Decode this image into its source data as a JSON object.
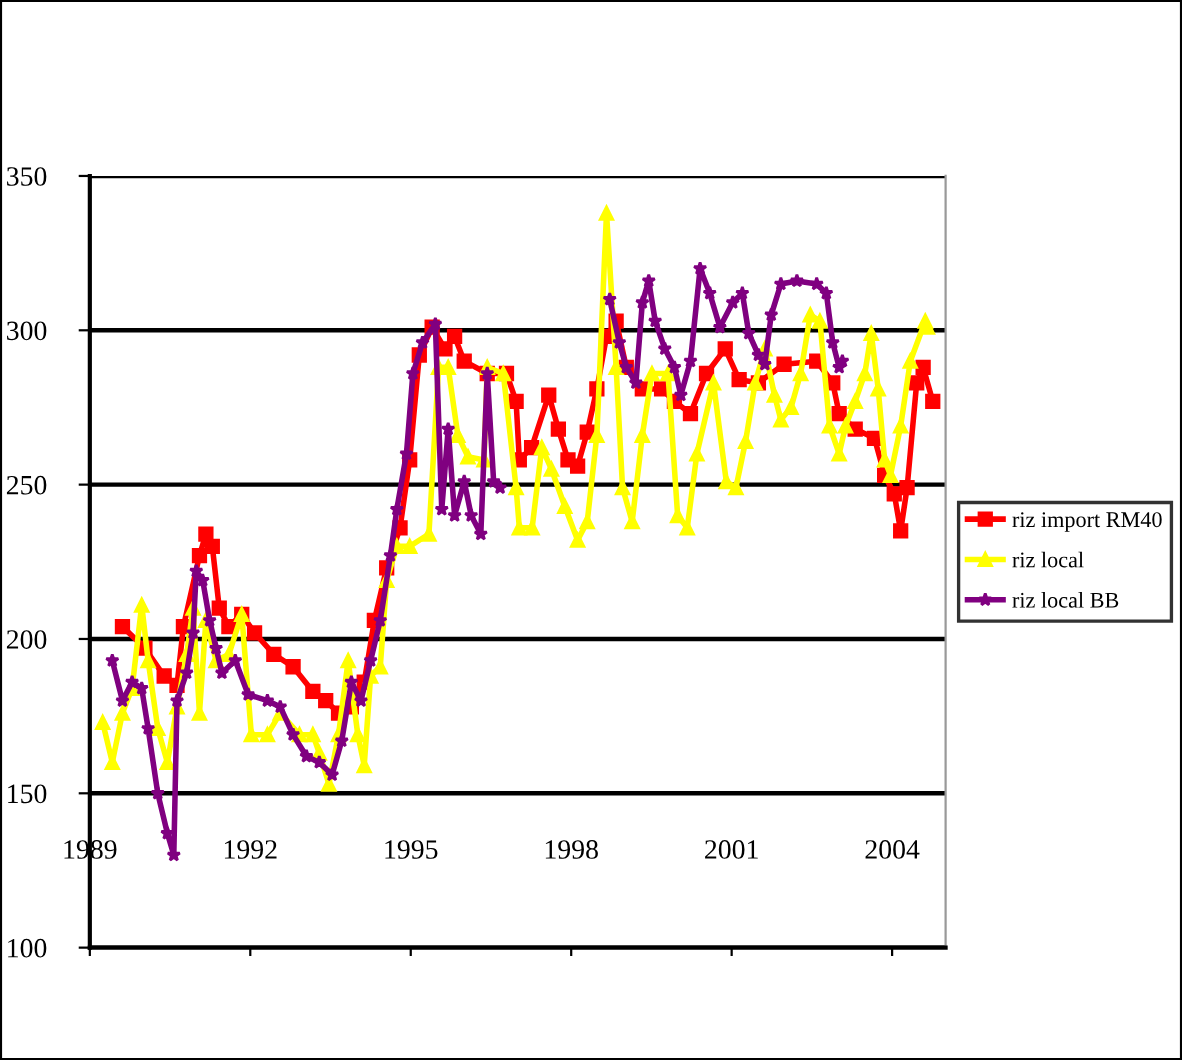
{
  "chart_data": {
    "type": "line",
    "xlim": [
      1989,
      2005
    ],
    "xticks": [
      1989,
      1992,
      1995,
      1998,
      2001,
      2004
    ],
    "ylim": [
      100,
      350
    ],
    "yticks": [
      100,
      150,
      200,
      250,
      300,
      350
    ],
    "grid": "y",
    "legend": "right",
    "series": [
      {
        "name": "riz import RM40",
        "color": "#ff0000",
        "marker": "square",
        "x": [
          1989.61,
          1990.03,
          1990.39,
          1990.63,
          1990.75,
          1991.05,
          1991.17,
          1991.29,
          1991.42,
          1991.6,
          1991.84,
          1992.08,
          1992.44,
          1992.8,
          1993.17,
          1993.41,
          1993.65,
          1993.89,
          1994.13,
          1994.32,
          1994.55,
          1994.8,
          1994.98,
          1995.16,
          1995.4,
          1995.64,
          1995.82,
          1996.0,
          1996.43,
          1996.79,
          1996.97,
          1997.03,
          1997.26,
          1997.58,
          1997.76,
          1997.94,
          1998.12,
          1998.3,
          1998.48,
          1998.66,
          1998.84,
          1999.03,
          1999.33,
          1999.69,
          1999.93,
          2000.23,
          2000.53,
          2000.88,
          2001.14,
          2001.5,
          2001.98,
          2002.59,
          2002.89,
          2003.01,
          2003.31,
          2003.67,
          2003.86,
          2004.04,
          2004.16,
          2004.28,
          2004.46,
          2004.58,
          2004.76
        ],
        "values": [
          204,
          197,
          188,
          185,
          204,
          227,
          234,
          230,
          210,
          204,
          208,
          202,
          195,
          191,
          183,
          180,
          176,
          178,
          186,
          206,
          223,
          236,
          258,
          292,
          301,
          294,
          298,
          290,
          286,
          286,
          277,
          258,
          262,
          279,
          268,
          258,
          256,
          267,
          281,
          298,
          303,
          288,
          281,
          281,
          277,
          273,
          286,
          294,
          284,
          283,
          289,
          290,
          283,
          273,
          268,
          265,
          253,
          247,
          235,
          249,
          283,
          288,
          277
        ]
      },
      {
        "name": "riz local",
        "color": "#ffff00",
        "marker": "triangle",
        "x": [
          1989.24,
          1989.42,
          1989.61,
          1989.79,
          1989.97,
          1990.09,
          1990.27,
          1990.45,
          1990.63,
          1990.81,
          1990.93,
          1991.05,
          1991.17,
          1991.36,
          1991.6,
          1991.84,
          1992.02,
          1992.32,
          1992.56,
          1992.92,
          1993.17,
          1993.29,
          1993.47,
          1993.65,
          1993.83,
          1994.01,
          1994.13,
          1994.25,
          1994.43,
          1994.55,
          1994.74,
          1994.98,
          1995.34,
          1995.52,
          1995.7,
          1995.88,
          1996.07,
          1996.37,
          1996.43,
          1996.73,
          1996.97,
          1997.03,
          1997.27,
          1997.45,
          1997.63,
          1997.88,
          1998.12,
          1998.3,
          1998.48,
          1998.66,
          1998.84,
          1998.96,
          1999.14,
          1999.33,
          1999.51,
          1999.81,
          1999.99,
          2000.17,
          2000.35,
          2000.66,
          2000.9,
          2001.08,
          2001.26,
          2001.44,
          2001.62,
          2001.8,
          2001.92,
          2002.11,
          2002.29,
          2002.47,
          2002.65,
          2002.83,
          2003.01,
          2003.13,
          2003.31,
          2003.49,
          2003.61,
          2003.74,
          2003.86,
          2003.97,
          2004.16,
          2004.34,
          2004.62,
          2004.66
        ],
        "values": [
          173,
          160,
          176,
          184,
          211,
          193,
          171,
          160,
          178,
          195,
          210,
          176,
          206,
          193,
          195,
          208,
          169,
          169,
          176,
          169,
          169,
          163,
          153,
          169,
          193,
          169,
          159,
          188,
          191,
          219,
          230,
          230,
          234,
          288,
          288,
          266,
          259,
          258,
          288,
          286,
          249,
          236,
          236,
          262,
          255,
          243,
          232,
          238,
          266,
          338,
          288,
          249,
          238,
          266,
          286,
          286,
          240,
          236,
          260,
          283,
          251,
          249,
          264,
          283,
          294,
          279,
          271,
          275,
          286,
          305,
          303,
          269,
          260,
          269,
          277,
          286,
          299,
          281,
          258,
          253,
          269,
          290,
          303,
          301
        ]
      },
      {
        "name": "riz local BB",
        "color": "#800080",
        "marker": "star",
        "x": [
          1989.42,
          1989.61,
          1989.79,
          1989.97,
          1990.09,
          1990.27,
          1990.45,
          1990.57,
          1990.63,
          1990.81,
          1990.93,
          1990.99,
          1991.11,
          1991.24,
          1991.36,
          1991.47,
          1991.72,
          1991.96,
          1992.32,
          1992.56,
          1992.8,
          1993.05,
          1993.29,
          1993.53,
          1993.71,
          1993.89,
          1994.07,
          1994.25,
          1994.43,
          1994.62,
          1994.74,
          1994.92,
          1995.04,
          1995.22,
          1995.46,
          1995.58,
          1995.7,
          1995.82,
          1996.0,
          1996.13,
          1996.31,
          1996.43,
          1996.55,
          1996.67,
          1997.5,
          1998.72,
          1998.9,
          1999.03,
          1999.21,
          1999.33,
          1999.45,
          1999.57,
          1999.75,
          1999.93,
          2000.05,
          2000.23,
          2000.41,
          2000.59,
          2000.78,
          2001.02,
          2001.2,
          2001.32,
          2001.5,
          2001.62,
          2001.74,
          2001.92,
          2002.22,
          2002.59,
          2002.77,
          2002.89,
          2003.01,
          2003.07
        ],
        "values": [
          193,
          180,
          186,
          184,
          171,
          150,
          137,
          130,
          180,
          189,
          202,
          222,
          219,
          206,
          197,
          189,
          193,
          182,
          180,
          178,
          169,
          162,
          160,
          156,
          167,
          186,
          180,
          193,
          206,
          227,
          242,
          260,
          286,
          296,
          302,
          242,
          268,
          240,
          251,
          240,
          234,
          286,
          251,
          249,
          null,
          310,
          296,
          288,
          283,
          309,
          316,
          303,
          294,
          288,
          279,
          290,
          320,
          312,
          301,
          309,
          312,
          299,
          292,
          289,
          305,
          315,
          316,
          315,
          312,
          296,
          288,
          290
        ]
      }
    ]
  }
}
